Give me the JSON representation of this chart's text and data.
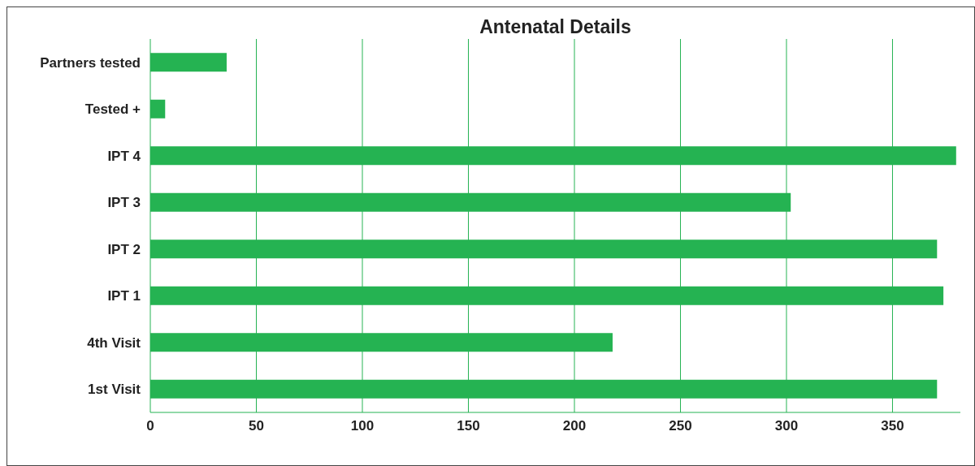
{
  "chart_data": {
    "type": "bar",
    "orientation": "horizontal",
    "title": "Antenatal Details",
    "categories": [
      "Partners tested",
      "Tested +",
      "IPT 4",
      "IPT 3",
      "IPT 2",
      "IPT 1",
      "4th Visit",
      "1st Visit"
    ],
    "values": [
      36,
      7,
      380,
      302,
      371,
      374,
      218,
      371
    ],
    "color": "#25b352",
    "xlim": [
      0,
      382
    ],
    "xticks": [
      0,
      50,
      100,
      150,
      200,
      250,
      300,
      350
    ],
    "grid": "x"
  }
}
